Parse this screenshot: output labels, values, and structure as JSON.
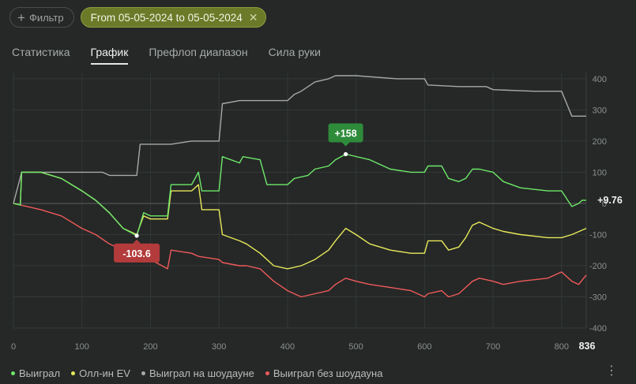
{
  "filters": {
    "add_filter_label": "Фильтр",
    "date_range_label": "From 05-05-2024 to 05-05-2024"
  },
  "tabs": [
    {
      "label": "Статистика",
      "active": false
    },
    {
      "label": "График",
      "active": true
    },
    {
      "label": "Префлоп диапазон",
      "active": false
    },
    {
      "label": "Сила руки",
      "active": false
    }
  ],
  "colors": {
    "won": "#6ee86a",
    "allin_ev": "#e8e85a",
    "showdown": "#a8a8a8",
    "non_showdown": "#f05a5a",
    "accent": "#6b7a28"
  },
  "chart_data": {
    "type": "line",
    "xlim": [
      0,
      836
    ],
    "ylim": [
      -400,
      420
    ],
    "x_ticks": [
      "0",
      "100",
      "200",
      "300",
      "400",
      "500",
      "600",
      "700",
      "800",
      "836"
    ],
    "y_ticks": [
      "400",
      "300",
      "200",
      "100",
      "0",
      "-100",
      "-200",
      "-300",
      "-400"
    ],
    "grid": true,
    "legend_position": "bottom-left",
    "series": [
      {
        "name": "Выиграл",
        "color_key": "won",
        "points": [
          [
            0,
            0
          ],
          [
            10,
            -5
          ],
          [
            12,
            100
          ],
          [
            40,
            100
          ],
          [
            70,
            80
          ],
          [
            100,
            40
          ],
          [
            120,
            10
          ],
          [
            140,
            -30
          ],
          [
            160,
            -80
          ],
          [
            180,
            -103.6
          ],
          [
            190,
            -30
          ],
          [
            200,
            -40
          ],
          [
            225,
            -40
          ],
          [
            230,
            60
          ],
          [
            260,
            60
          ],
          [
            270,
            100
          ],
          [
            275,
            40
          ],
          [
            300,
            40
          ],
          [
            305,
            150
          ],
          [
            330,
            130
          ],
          [
            335,
            150
          ],
          [
            360,
            140
          ],
          [
            370,
            60
          ],
          [
            400,
            60
          ],
          [
            410,
            80
          ],
          [
            430,
            90
          ],
          [
            440,
            110
          ],
          [
            460,
            120
          ],
          [
            470,
            140
          ],
          [
            485,
            158
          ],
          [
            520,
            140
          ],
          [
            550,
            110
          ],
          [
            580,
            100
          ],
          [
            600,
            100
          ],
          [
            605,
            120
          ],
          [
            625,
            120
          ],
          [
            635,
            80
          ],
          [
            650,
            70
          ],
          [
            660,
            80
          ],
          [
            670,
            110
          ],
          [
            680,
            110
          ],
          [
            700,
            100
          ],
          [
            715,
            70
          ],
          [
            740,
            50
          ],
          [
            780,
            40
          ],
          [
            800,
            40
          ],
          [
            815,
            -10
          ],
          [
            825,
            0
          ],
          [
            830,
            10
          ],
          [
            836,
            9.76
          ]
        ],
        "end_label": "+9.76",
        "peak": {
          "x": 485,
          "y": 158,
          "label": "+158"
        },
        "trough": {
          "x": 180,
          "y": -103.6,
          "label": "-103.6"
        }
      },
      {
        "name": "Олл-ин EV",
        "color_key": "allin_ev",
        "points": [
          [
            0,
            0
          ],
          [
            10,
            -5
          ],
          [
            12,
            100
          ],
          [
            40,
            100
          ],
          [
            70,
            80
          ],
          [
            100,
            40
          ],
          [
            120,
            10
          ],
          [
            140,
            -30
          ],
          [
            160,
            -80
          ],
          [
            180,
            -100
          ],
          [
            190,
            -40
          ],
          [
            200,
            -50
          ],
          [
            225,
            -50
          ],
          [
            230,
            40
          ],
          [
            260,
            40
          ],
          [
            270,
            60
          ],
          [
            275,
            -20
          ],
          [
            300,
            -20
          ],
          [
            305,
            -100
          ],
          [
            330,
            -120
          ],
          [
            340,
            -130
          ],
          [
            360,
            -160
          ],
          [
            380,
            -200
          ],
          [
            400,
            -210
          ],
          [
            420,
            -200
          ],
          [
            440,
            -180
          ],
          [
            460,
            -150
          ],
          [
            470,
            -120
          ],
          [
            485,
            -80
          ],
          [
            500,
            -100
          ],
          [
            520,
            -130
          ],
          [
            550,
            -150
          ],
          [
            580,
            -160
          ],
          [
            600,
            -160
          ],
          [
            605,
            -120
          ],
          [
            625,
            -120
          ],
          [
            635,
            -150
          ],
          [
            650,
            -140
          ],
          [
            660,
            -110
          ],
          [
            670,
            -70
          ],
          [
            680,
            -60
          ],
          [
            700,
            -80
          ],
          [
            715,
            -90
          ],
          [
            740,
            -100
          ],
          [
            780,
            -110
          ],
          [
            800,
            -110
          ],
          [
            815,
            -100
          ],
          [
            836,
            -80
          ]
        ]
      },
      {
        "name": "Выиграл на шоудауне",
        "color_key": "showdown",
        "points": [
          [
            0,
            0
          ],
          [
            12,
            100
          ],
          [
            130,
            100
          ],
          [
            140,
            90
          ],
          [
            180,
            90
          ],
          [
            185,
            190
          ],
          [
            230,
            190
          ],
          [
            260,
            200
          ],
          [
            300,
            200
          ],
          [
            305,
            320
          ],
          [
            330,
            330
          ],
          [
            400,
            330
          ],
          [
            410,
            350
          ],
          [
            420,
            360
          ],
          [
            440,
            390
          ],
          [
            460,
            400
          ],
          [
            470,
            410
          ],
          [
            500,
            410
          ],
          [
            560,
            400
          ],
          [
            600,
            400
          ],
          [
            605,
            380
          ],
          [
            650,
            375
          ],
          [
            690,
            375
          ],
          [
            700,
            365
          ],
          [
            760,
            360
          ],
          [
            800,
            360
          ],
          [
            815,
            280
          ],
          [
            836,
            280
          ]
        ]
      },
      {
        "name": "Выиграл без шоудауна",
        "color_key": "non_showdown",
        "points": [
          [
            0,
            0
          ],
          [
            10,
            -5
          ],
          [
            20,
            -10
          ],
          [
            40,
            -20
          ],
          [
            70,
            -40
          ],
          [
            100,
            -80
          ],
          [
            120,
            -100
          ],
          [
            140,
            -130
          ],
          [
            160,
            -150
          ],
          [
            180,
            -170
          ],
          [
            190,
            -160
          ],
          [
            200,
            -180
          ],
          [
            225,
            -210
          ],
          [
            230,
            -150
          ],
          [
            260,
            -160
          ],
          [
            270,
            -170
          ],
          [
            300,
            -180
          ],
          [
            305,
            -190
          ],
          [
            330,
            -200
          ],
          [
            340,
            -200
          ],
          [
            360,
            -210
          ],
          [
            380,
            -250
          ],
          [
            400,
            -280
          ],
          [
            420,
            -300
          ],
          [
            440,
            -290
          ],
          [
            460,
            -280
          ],
          [
            470,
            -260
          ],
          [
            485,
            -240
          ],
          [
            500,
            -250
          ],
          [
            520,
            -260
          ],
          [
            550,
            -270
          ],
          [
            580,
            -280
          ],
          [
            600,
            -300
          ],
          [
            605,
            -290
          ],
          [
            625,
            -280
          ],
          [
            635,
            -300
          ],
          [
            650,
            -290
          ],
          [
            660,
            -270
          ],
          [
            670,
            -250
          ],
          [
            680,
            -240
          ],
          [
            700,
            -250
          ],
          [
            715,
            -260
          ],
          [
            740,
            -250
          ],
          [
            780,
            -240
          ],
          [
            800,
            -220
          ],
          [
            815,
            -250
          ],
          [
            825,
            -260
          ],
          [
            836,
            -230
          ]
        ]
      }
    ]
  }
}
